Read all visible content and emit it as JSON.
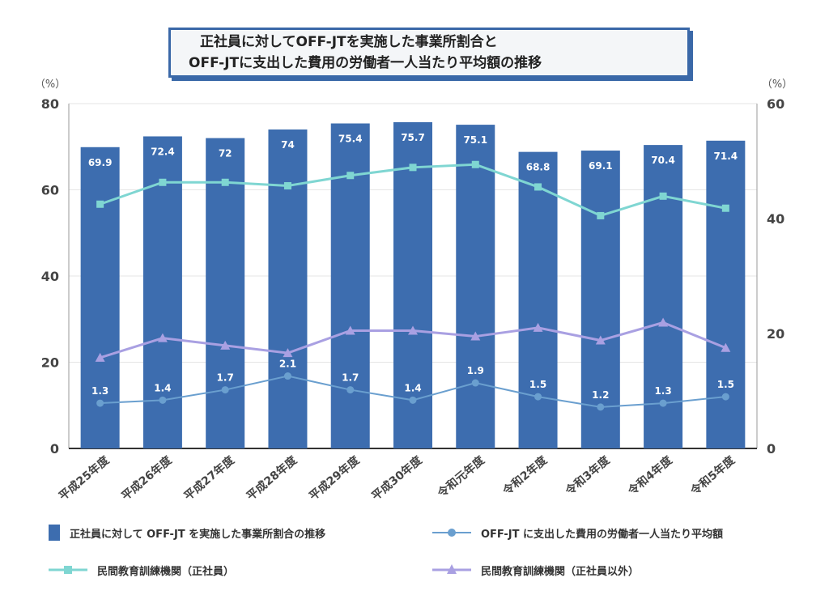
{
  "title": {
    "line1": "正社員に対してOFF-JTを実施した事業所割合と",
    "line2": "OFF-JTに支出した費用の労働者一人当たり平均額の推移"
  },
  "left_unit": "（%）",
  "right_unit": "（%）",
  "colors": {
    "bar": "#3d6daf",
    "line_offjt": "#6a9fcf",
    "line_seishain": "#7fd6d2",
    "line_other": "#a9a0e2",
    "grid": "#e6e6e6",
    "axis_text": "#444444"
  },
  "legend": {
    "bar": "正社員に対して OFF-JT を実施した事業所割合の推移",
    "offjt": "OFF-JT に支出した費用の労働者一人当たり平均額",
    "seishain": "民間教育訓練機関（正社員）",
    "other": "民間教育訓練機関（正社員以外）"
  },
  "chart_data": {
    "type": "bar",
    "categories": [
      "平成25年度",
      "平成26年度",
      "平成27年度",
      "平成28年度",
      "平成29年度",
      "平成30年度",
      "令和元年度",
      "令和2年度",
      "令和3年度",
      "令和4年度",
      "令和5年度"
    ],
    "series": [
      {
        "name": "正社員に対して OFF-JT を実施した事業所割合の推移",
        "type": "bar",
        "axis": "left",
        "values": [
          69.9,
          72.4,
          72,
          74,
          75.4,
          75.7,
          75.1,
          68.8,
          69.1,
          70.4,
          71.4
        ],
        "labels": [
          "69.9",
          "72.4",
          "72",
          "74",
          "75.4",
          "75.7",
          "75.1",
          "68.8",
          "69.1",
          "70.4",
          "71.4"
        ]
      },
      {
        "name": "OFF-JT に支出した費用の労働者一人当たり平均額",
        "type": "line",
        "axis": "left",
        "marker": "circle",
        "values": [
          10.5,
          11.2,
          13.6,
          16.8,
          13.6,
          11.2,
          15.2,
          12.0,
          9.6,
          10.5,
          12.0
        ],
        "labels": [
          "1.3",
          "1.4",
          "1.7",
          "2.1",
          "1.7",
          "1.4",
          "1.9",
          "1.5",
          "1.2",
          "1.3",
          "1.5"
        ]
      },
      {
        "name": "民間教育訓練機関（正社員）",
        "type": "line",
        "axis": "right",
        "marker": "square",
        "values": [
          42.5,
          46.3,
          46.3,
          45.7,
          47.5,
          48.9,
          49.4,
          45.5,
          40.5,
          43.9,
          41.8
        ]
      },
      {
        "name": "民間教育訓練機関（正社員以外）",
        "type": "line",
        "axis": "right",
        "marker": "triangle",
        "values": [
          15.8,
          19.2,
          17.9,
          16.6,
          20.5,
          20.5,
          19.5,
          21.0,
          18.8,
          21.9,
          17.5
        ]
      }
    ],
    "left_axis": {
      "ylim": [
        0,
        80
      ],
      "ticks": [
        0,
        20,
        40,
        60,
        80
      ]
    },
    "right_axis": {
      "ylim": [
        0,
        60
      ],
      "ticks": [
        0,
        20,
        40,
        60
      ]
    },
    "grid": true,
    "legend_position": "bottom"
  }
}
